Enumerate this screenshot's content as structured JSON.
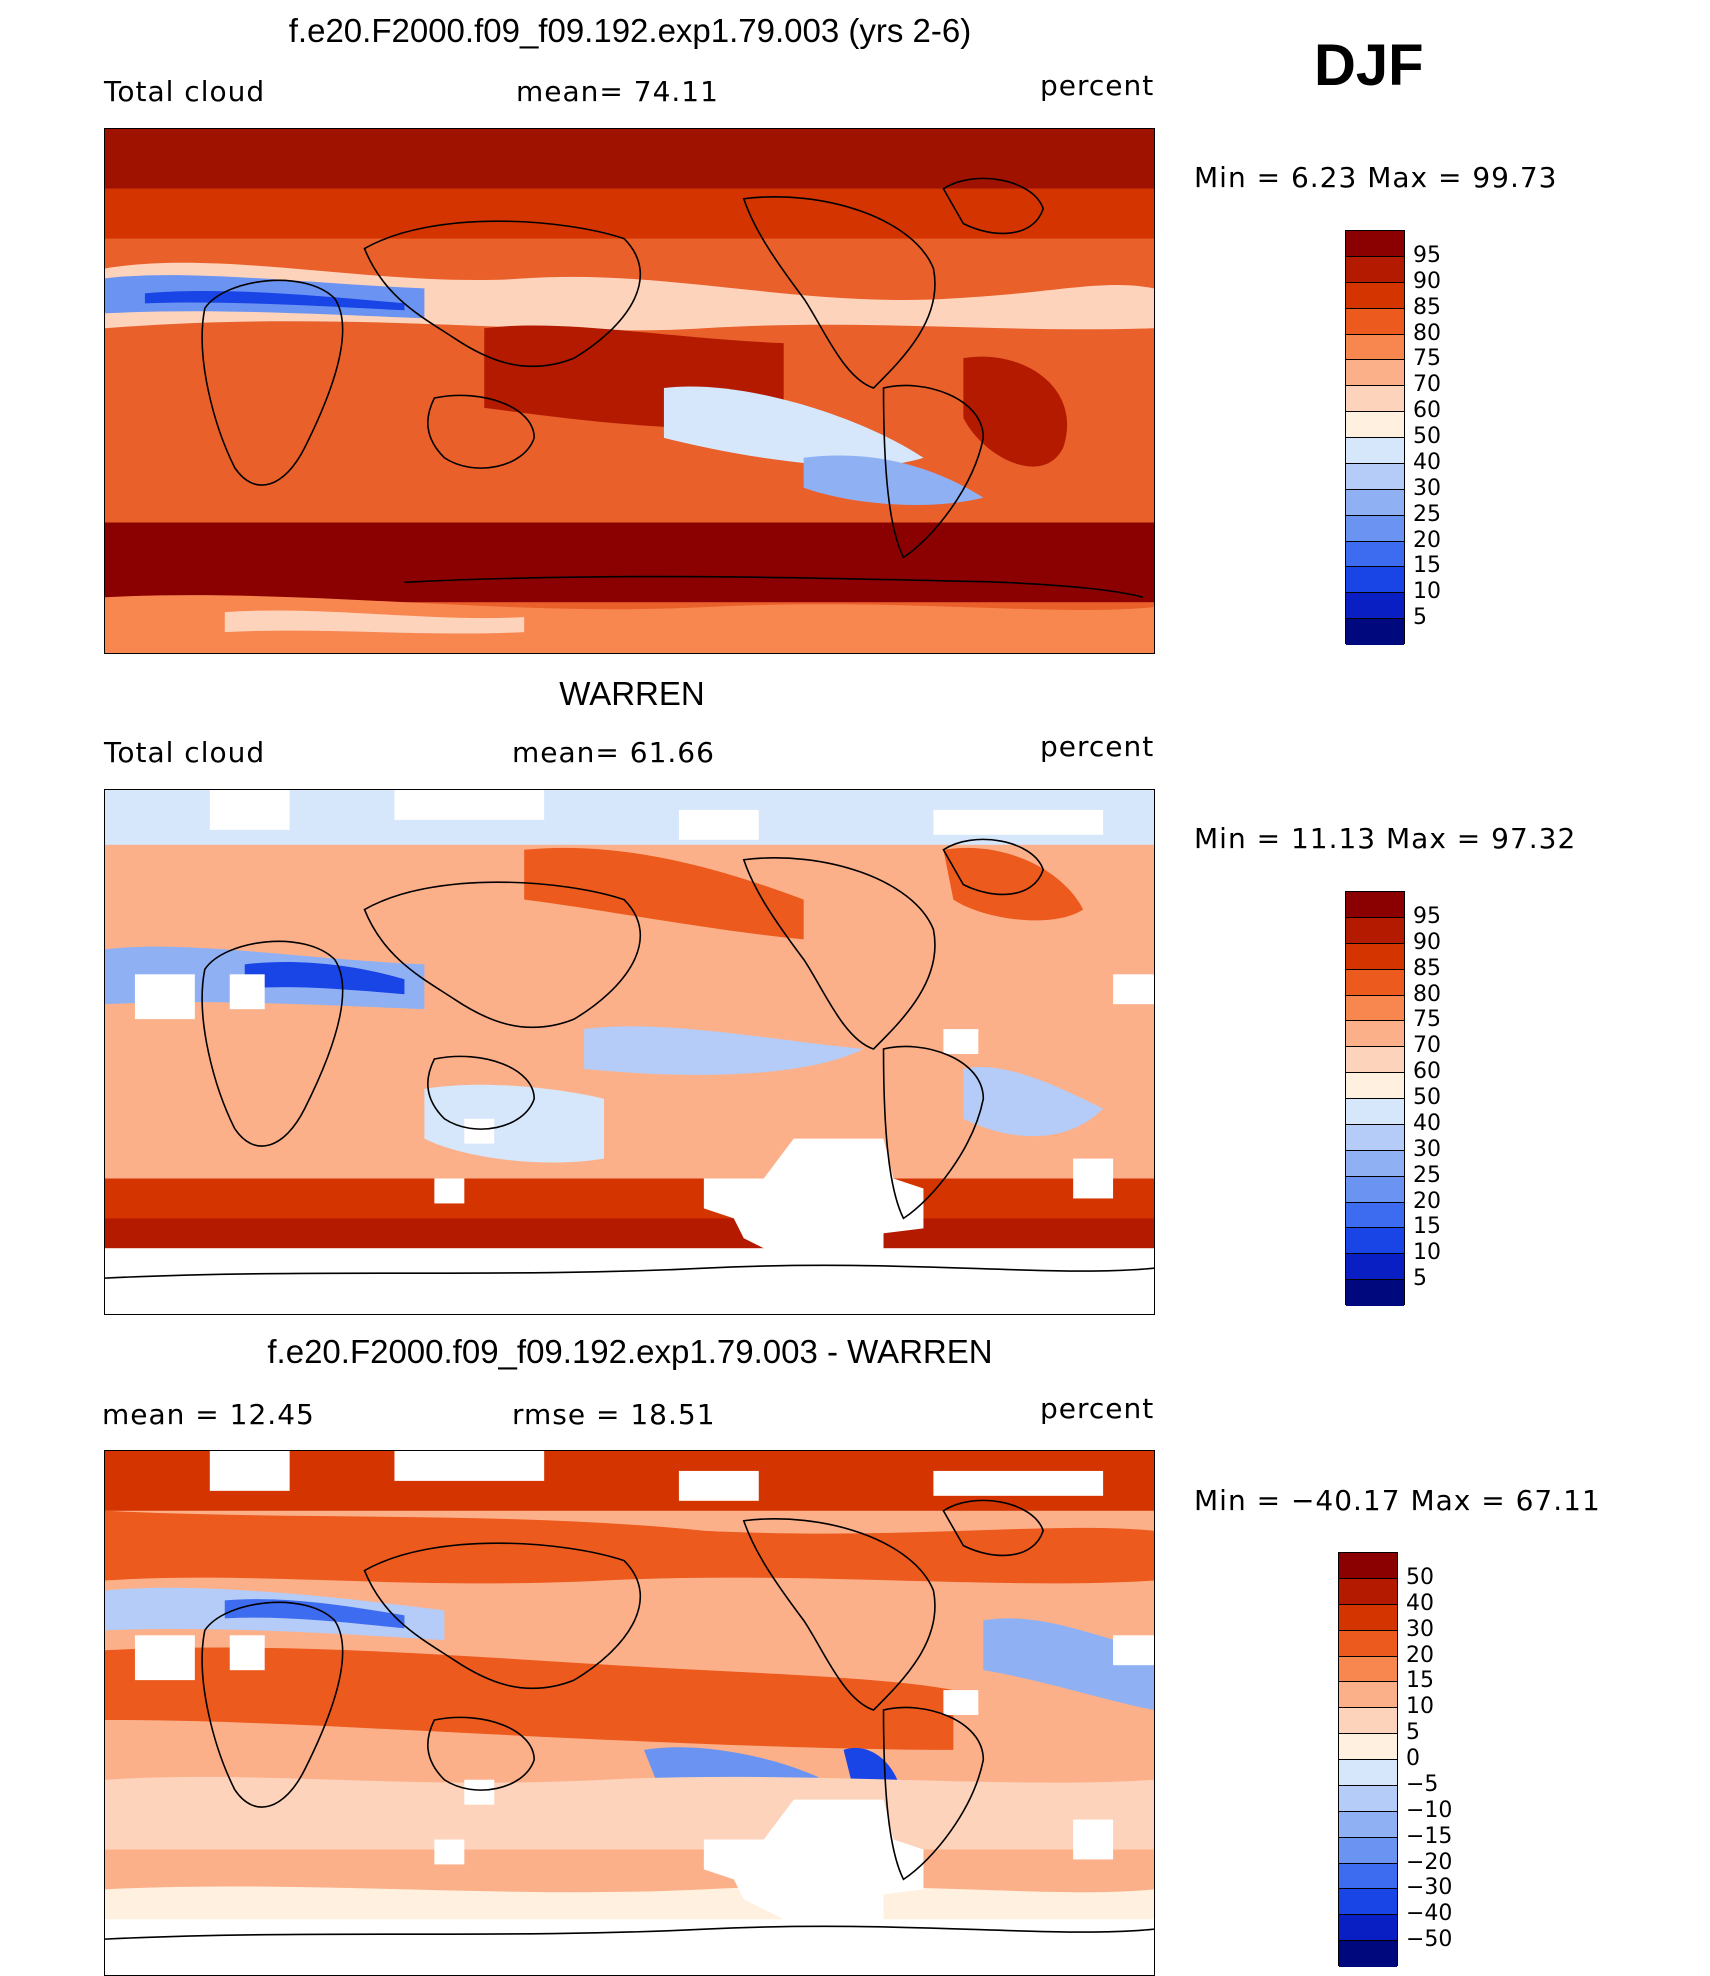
{
  "season": "DJF",
  "panels": [
    {
      "title": "f.e20.F2000.f09_f09.192.exp1.79.003 (yrs 2-6)",
      "left_label": "Total cloud",
      "mid_label": "mean=   74.11",
      "units": "percent",
      "minmax": "Min =    6.23 Max =   99.73",
      "colorbar": {
        "colors": [
          "#8b0000",
          "#b31a00",
          "#d43500",
          "#ec5a1e",
          "#f8864f",
          "#fcb08a",
          "#fdd3bc",
          "#fff0e0",
          "#d6e6fb",
          "#b4ccf7",
          "#8fb1f4",
          "#6a93f2",
          "#3d6cf0",
          "#1944e6",
          "#0a1fc3",
          "#00087d"
        ],
        "labels": [
          "95",
          "90",
          "85",
          "80",
          "75",
          "70",
          "60",
          "50",
          "40",
          "30",
          "25",
          "20",
          "15",
          "10",
          "5"
        ]
      }
    },
    {
      "title": "WARREN",
      "left_label": "Total cloud",
      "mid_label": "mean=   61.66",
      "units": "percent",
      "minmax": "Min =   11.13 Max =   97.32",
      "colorbar": {
        "colors": [
          "#8b0000",
          "#b31a00",
          "#d43500",
          "#ec5a1e",
          "#f8864f",
          "#fcb08a",
          "#fdd3bc",
          "#fff0e0",
          "#d6e6fb",
          "#b4ccf7",
          "#8fb1f4",
          "#6a93f2",
          "#3d6cf0",
          "#1944e6",
          "#0a1fc3",
          "#00087d"
        ],
        "labels": [
          "95",
          "90",
          "85",
          "80",
          "75",
          "70",
          "60",
          "50",
          "40",
          "30",
          "25",
          "20",
          "15",
          "10",
          "5"
        ]
      }
    },
    {
      "title": "f.e20.F2000.f09_f09.192.exp1.79.003 - WARREN",
      "left_label": "mean =   12.45",
      "mid_label": "rmse =   18.51",
      "units": "percent",
      "minmax": "Min = −40.17 Max =   67.11",
      "colorbar": {
        "colors": [
          "#8b0000",
          "#b31a00",
          "#d43500",
          "#ec5a1e",
          "#f8864f",
          "#fcb08a",
          "#fdd3bc",
          "#fff0e0",
          "#d6e6fb",
          "#b4ccf7",
          "#8fb1f4",
          "#6a93f2",
          "#3d6cf0",
          "#1944e6",
          "#0a1fc3",
          "#00087d"
        ],
        "labels": [
          "50",
          "40",
          "30",
          "20",
          "15",
          "10",
          "5",
          "0",
          "−5",
          "−10",
          "−15",
          "−20",
          "−30",
          "−40",
          "−50"
        ]
      }
    }
  ]
}
